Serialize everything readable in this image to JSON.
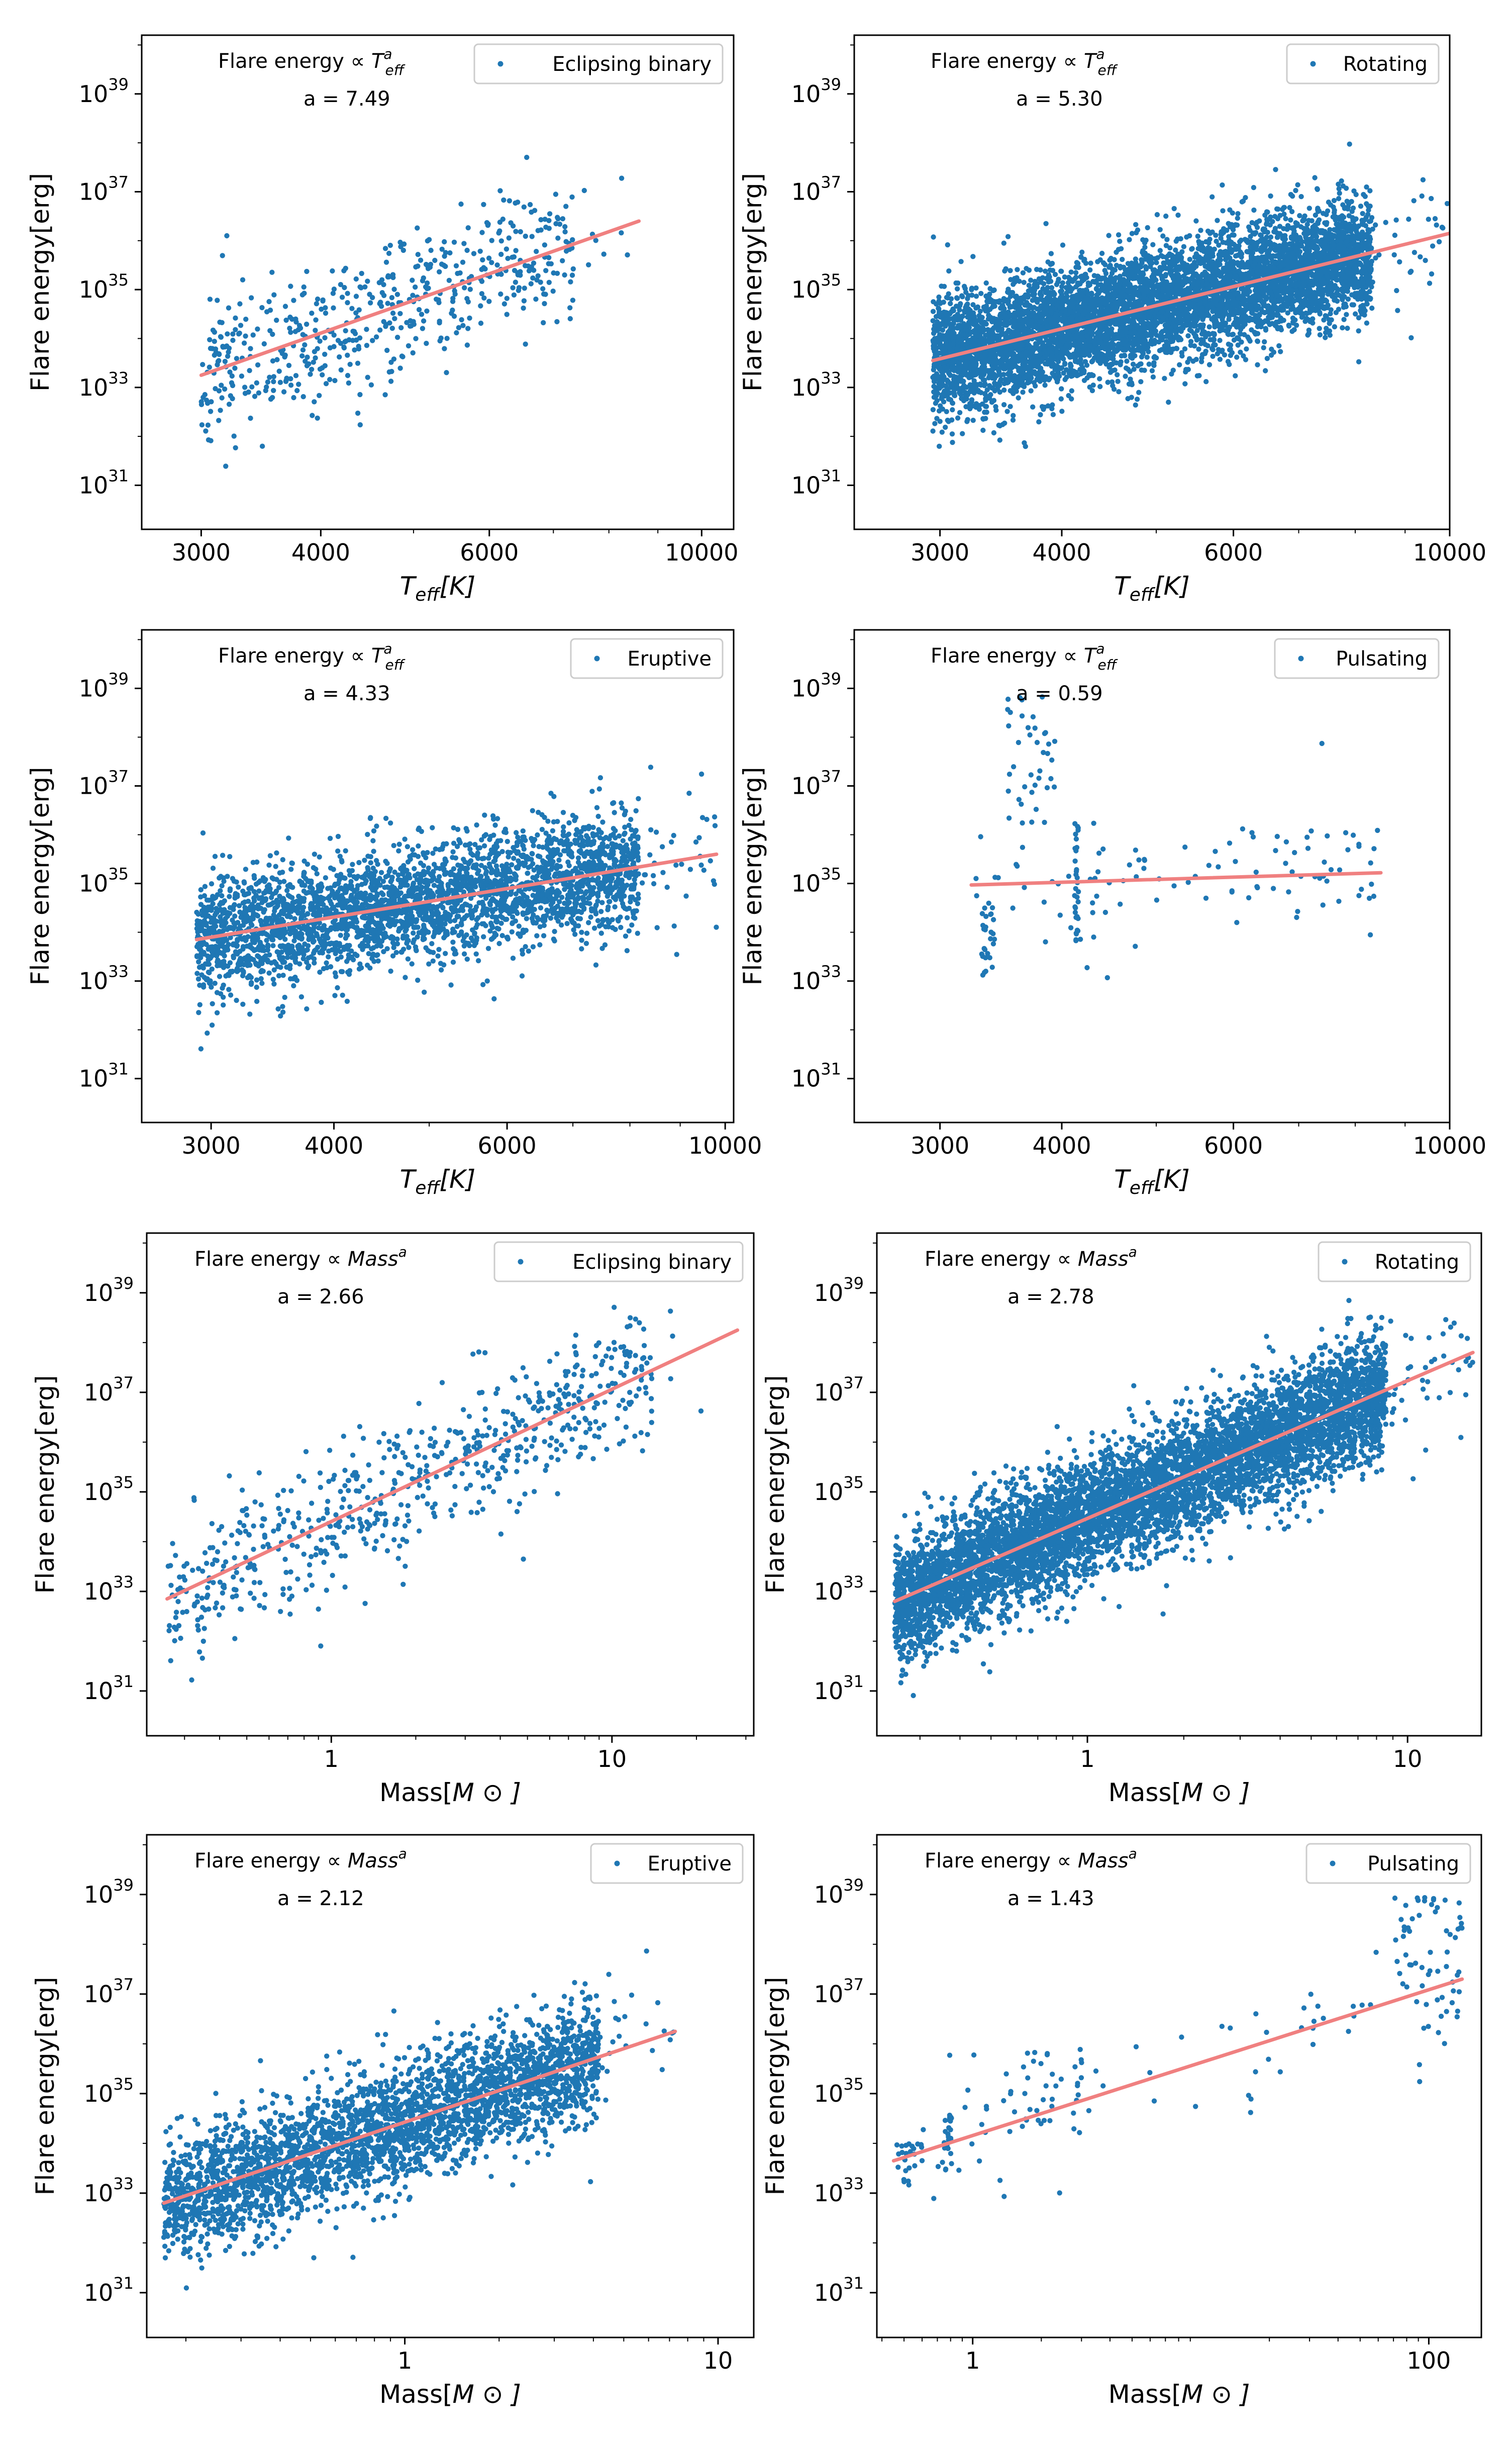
{
  "figure": {
    "description_free": true
  },
  "chart_data": [
    {
      "type": "scatter",
      "xscale": "log",
      "yscale": "log",
      "xlabel": "T_eff[K]",
      "xlabel_main": "T",
      "xlabel_sub": "eff",
      "xlabel_tail": "[K]",
      "ylabel": "Flare energy[erg]",
      "xlim": [
        2600,
        10800
      ],
      "ylim_exp": [
        30.1,
        40.2
      ],
      "xticks": [
        3000,
        4000,
        6000,
        10000
      ],
      "xtick_labels": [
        "3000",
        "4000",
        "6000",
        "10000"
      ],
      "yticks_exp": [
        31,
        33,
        35,
        37,
        39
      ],
      "ytick_base": "10",
      "legend": {
        "label": "Eclipsing binary",
        "position": "top-right"
      },
      "annotation": {
        "prefix": "Flare energy  ∝",
        "var": "T",
        "sup": "a",
        "sub": "eff",
        "fit_text": "a = 7.49"
      },
      "fit": {
        "slope": 7.49,
        "x_range": [
          3000,
          8600
        ],
        "y_range_exp": [
          33.25,
          36.4
        ]
      },
      "cloud": {
        "seed": 11,
        "n_main": 500,
        "y_center": 34.3,
        "y_spread": 0.75
      },
      "series": [
        {
          "name": "Eclipsing binary",
          "n_points": 700
        }
      ]
    },
    {
      "type": "scatter",
      "xscale": "log",
      "yscale": "log",
      "xlabel": "T_eff[K]",
      "xlabel_main": "T",
      "xlabel_sub": "eff",
      "xlabel_tail": "[K]",
      "ylabel": "Flare energy[erg]",
      "xlim": [
        2450,
        10000
      ],
      "ylim_exp": [
        30.1,
        40.2
      ],
      "xticks": [
        3000,
        4000,
        6000,
        10000
      ],
      "xtick_labels": [
        "3000",
        "4000",
        "6000",
        "10000"
      ],
      "yticks_exp": [
        31,
        33,
        35,
        37,
        39
      ],
      "ytick_base": "10",
      "legend": {
        "label": "Rotating",
        "position": "top-right"
      },
      "annotation": {
        "prefix": "Flare energy  ∝",
        "var": "T",
        "sup": "a",
        "sub": "eff",
        "fit_text": "a = 5.30"
      },
      "fit": {
        "slope": 5.3,
        "x_range": [
          2950,
          10000
        ],
        "y_range_exp": [
          33.55,
          36.15
        ]
      },
      "cloud": {
        "seed": 22,
        "n_main": 6000,
        "y_center": 34.4,
        "y_spread": 0.6
      },
      "series": [
        {
          "name": "Rotating",
          "n_points": 6000
        }
      ]
    },
    {
      "type": "scatter",
      "xscale": "log",
      "yscale": "log",
      "xlabel": "T_eff[K]",
      "xlabel_main": "T",
      "xlabel_sub": "eff",
      "xlabel_tail": "[K]",
      "ylabel": "Flare energy[erg]",
      "xlim": [
        2550,
        10200
      ],
      "ylim_exp": [
        30.1,
        40.2
      ],
      "xticks": [
        3000,
        4000,
        6000,
        10000
      ],
      "xtick_labels": [
        "3000",
        "4000",
        "6000",
        "10000"
      ],
      "yticks_exp": [
        31,
        33,
        35,
        37,
        39
      ],
      "ytick_base": "10",
      "legend": {
        "label": "Eruptive",
        "position": "top-right"
      },
      "annotation": {
        "prefix": "Flare energy  ∝",
        "var": "T",
        "sup": "a",
        "sub": "eff",
        "fit_text": "a = 4.33"
      },
      "fit": {
        "slope": 4.33,
        "x_range": [
          2900,
          9800
        ],
        "y_range_exp": [
          33.85,
          35.6
        ]
      },
      "cloud": {
        "seed": 33,
        "n_main": 3000,
        "y_center": 34.6,
        "y_spread": 0.6
      },
      "series": [
        {
          "name": "Eruptive",
          "n_points": 3000
        }
      ]
    },
    {
      "type": "scatter",
      "xscale": "log",
      "yscale": "log",
      "xlabel": "T_eff[K]",
      "xlabel_main": "T",
      "xlabel_sub": "eff",
      "xlabel_tail": "[K]",
      "ylabel": "Flare energy[erg]",
      "xlim": [
        2450,
        10000
      ],
      "ylim_exp": [
        30.1,
        40.2
      ],
      "xticks": [
        3000,
        4000,
        6000,
        10000
      ],
      "xtick_labels": [
        "3000",
        "4000",
        "6000",
        "10000"
      ],
      "yticks_exp": [
        31,
        33,
        35,
        37,
        39
      ],
      "ytick_base": "10",
      "legend": {
        "label": "Pulsating",
        "position": "top-right"
      },
      "annotation": {
        "prefix": "Flare energy  ∝",
        "var": "T",
        "sup": "a",
        "sub": "eff",
        "fit_text": "a = 0.59"
      },
      "fit": {
        "slope": 0.59,
        "x_range": [
          3230,
          8500
        ],
        "y_range_exp": [
          34.97,
          35.22
        ]
      },
      "cloud": {
        "seed": 44,
        "n_main": 0,
        "y_center": 35.0,
        "y_spread": 0.6
      },
      "series": [
        {
          "name": "Pulsating",
          "n_points": 150
        }
      ]
    },
    {
      "type": "scatter",
      "xscale": "log",
      "yscale": "log",
      "xlabel": "Mass[M⊙]",
      "xlabel_main": "Mass[",
      "xlabel_sub": "",
      "xlabel_tail": "M ⊙ ]",
      "ylabel": "Flare energy[erg]",
      "xlim": [
        0.22,
        32
      ],
      "ylim_exp": [
        30.1,
        40.2
      ],
      "xticks": [
        1,
        10
      ],
      "xtick_labels": [
        "1",
        "10"
      ],
      "yticks_exp": [
        31,
        33,
        35,
        37,
        39
      ],
      "ytick_base": "10",
      "legend": {
        "label": "Eclipsing binary",
        "position": "top-right"
      },
      "annotation": {
        "prefix": "Flare energy  ∝",
        "var": "Mass",
        "sup": "a",
        "sub": "",
        "fit_text": "a = 2.66"
      },
      "fit": {
        "slope": 2.66,
        "x_range": [
          0.26,
          28
        ],
        "y_range_exp": [
          32.85,
          38.25
        ]
      },
      "cloud": {
        "seed": 55,
        "n_main": 600,
        "y_center": 34.5,
        "y_spread": 0.7
      },
      "series": [
        {
          "name": "Eclipsing binary",
          "n_points": 700
        }
      ]
    },
    {
      "type": "scatter",
      "xscale": "log",
      "yscale": "log",
      "xlabel": "Mass[M⊙]",
      "xlabel_main": "Mass[",
      "xlabel_sub": "",
      "xlabel_tail": "M ⊙ ]",
      "ylabel": "Flare energy[erg]",
      "xlim": [
        0.22,
        17
      ],
      "ylim_exp": [
        30.1,
        40.2
      ],
      "xticks": [
        1,
        10
      ],
      "xtick_labels": [
        "1",
        "10"
      ],
      "yticks_exp": [
        31,
        33,
        35,
        37,
        39
      ],
      "ytick_base": "10",
      "legend": {
        "label": "Rotating",
        "position": "top-right"
      },
      "annotation": {
        "prefix": "Flare energy  ∝",
        "var": "Mass",
        "sup": "a",
        "sub": "",
        "fit_text": "a = 2.78"
      },
      "fit": {
        "slope": 2.78,
        "x_range": [
          0.25,
          16
        ],
        "y_range_exp": [
          32.8,
          37.8
        ]
      },
      "cloud": {
        "seed": 66,
        "n_main": 6000,
        "y_center": 34.6,
        "y_spread": 0.6
      },
      "series": [
        {
          "name": "Rotating",
          "n_points": 6000
        }
      ]
    },
    {
      "type": "scatter",
      "xscale": "log",
      "yscale": "log",
      "xlabel": "Mass[M⊙]",
      "xlabel_main": "Mass[",
      "xlabel_sub": "",
      "xlabel_tail": "M ⊙ ]",
      "ylabel": "Flare energy[erg]",
      "xlim": [
        0.15,
        13
      ],
      "ylim_exp": [
        30.1,
        40.2
      ],
      "xticks": [
        1,
        10
      ],
      "xtick_labels": [
        "1",
        "10"
      ],
      "yticks_exp": [
        31,
        33,
        35,
        37,
        39
      ],
      "ytick_base": "10",
      "legend": {
        "label": "Eruptive",
        "position": "top-right"
      },
      "annotation": {
        "prefix": "Flare energy  ∝",
        "var": "Mass",
        "sup": "a",
        "sub": "",
        "fit_text": "a = 2.12"
      },
      "fit": {
        "slope": 2.12,
        "x_range": [
          0.17,
          7.3
        ],
        "y_range_exp": [
          32.8,
          36.25
        ]
      },
      "cloud": {
        "seed": 77,
        "n_main": 3000,
        "y_center": 34.5,
        "y_spread": 0.6
      },
      "series": [
        {
          "name": "Eruptive",
          "n_points": 3000
        }
      ]
    },
    {
      "type": "scatter",
      "xscale": "log",
      "yscale": "log",
      "xlabel": "Mass[M⊙]",
      "xlabel_main": "Mass[",
      "xlabel_sub": "",
      "xlabel_tail": "M ⊙ ]",
      "ylabel": "Flare energy[erg]",
      "xlim": [
        0.38,
        170
      ],
      "ylim_exp": [
        30.1,
        40.2
      ],
      "xticks": [
        1,
        100
      ],
      "xtick_labels": [
        "1",
        "100"
      ],
      "yticks_exp": [
        31,
        33,
        35,
        37,
        39
      ],
      "ytick_base": "10",
      "legend": {
        "label": "Pulsating",
        "position": "top-right"
      },
      "annotation": {
        "prefix": "Flare energy  ∝",
        "var": "Mass",
        "sup": "a",
        "sub": "",
        "fit_text": "a = 1.43"
      },
      "fit": {
        "slope": 1.43,
        "x_range": [
          0.45,
          140
        ],
        "y_range_exp": [
          33.65,
          37.3
        ]
      },
      "cloud": {
        "seed": 88,
        "n_main": 0,
        "y_center": 35.0,
        "y_spread": 0.6
      },
      "series": [
        {
          "name": "Pulsating",
          "n_points": 160
        }
      ]
    }
  ],
  "colors": {
    "points": "#1f77b4",
    "fit": "#f08080",
    "axes": "#000000",
    "legend_border": "#cccccc"
  }
}
